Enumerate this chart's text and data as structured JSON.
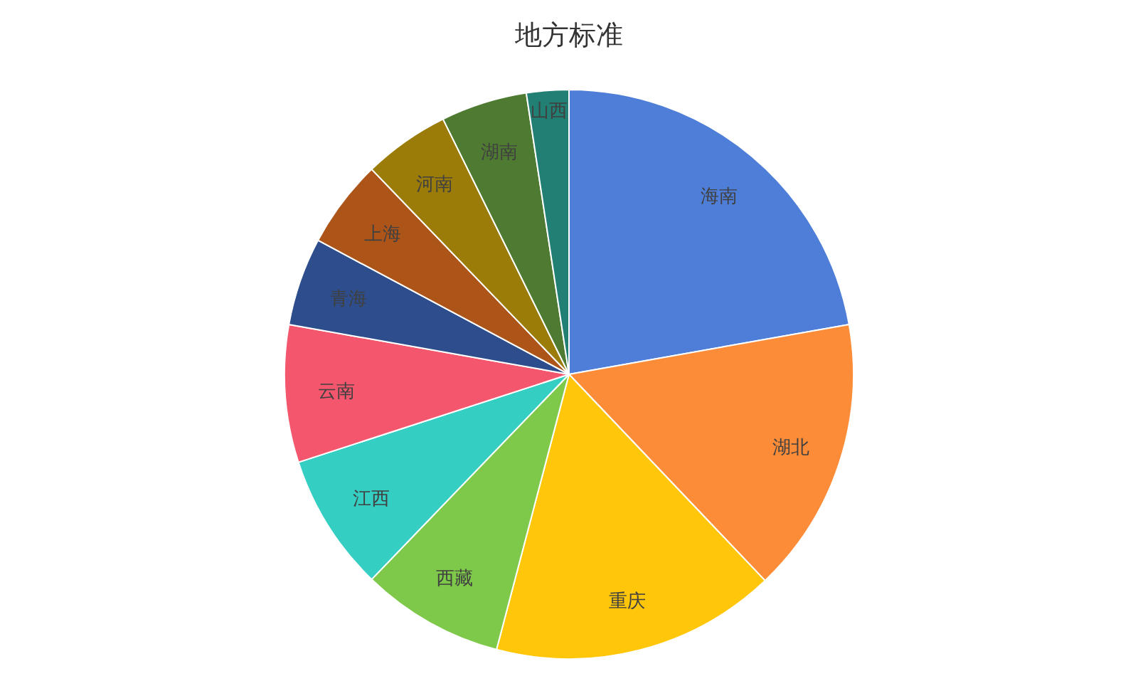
{
  "chart_data": {
    "type": "pie",
    "title": "地方标准",
    "categories": [
      "海南",
      "湖北",
      "重庆",
      "西藏",
      "江西",
      "云南",
      "青海",
      "上海",
      "河南",
      "湖南",
      "山西"
    ],
    "values": [
      22.2,
      15.7,
      16.2,
      8.1,
      7.8,
      7.8,
      5.0,
      5.0,
      4.9,
      4.9,
      2.4
    ],
    "colors": [
      "#4e7ed8",
      "#fd8c38",
      "#ffc60a",
      "#7ec84a",
      "#35cec3",
      "#f4566d",
      "#2d4d8c",
      "#ad5519",
      "#9c7c08",
      "#4e7b31",
      "#217f73"
    ]
  }
}
